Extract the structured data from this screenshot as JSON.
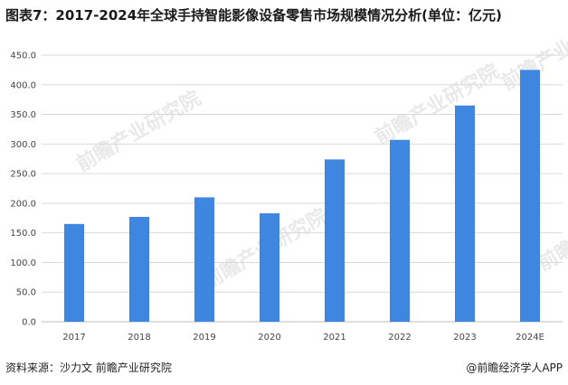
{
  "title": "图表7：2017-2024年全球手持智能影像设备零售市场规模情况分析(单位：亿元)",
  "source": "资料来源：沙力文 前瞻产业研究院",
  "credit": "@前瞻经济学人APP",
  "watermark": "前瞻产业研究院",
  "colors": {
    "bar": "#3f86e0",
    "grid": "#d9d9d9",
    "axis": "#bfbfbf"
  },
  "chart_data": {
    "type": "bar",
    "categories": [
      "2017",
      "2018",
      "2019",
      "2020",
      "2021",
      "2022",
      "2023",
      "2024E"
    ],
    "values": [
      165,
      177,
      210,
      183,
      274,
      307,
      365,
      425
    ],
    "ylim": [
      0,
      450
    ],
    "yticks": [
      "0.0",
      "50.0",
      "100.0",
      "150.0",
      "200.0",
      "250.0",
      "300.0",
      "350.0",
      "400.0",
      "450.0"
    ],
    "grid": true,
    "xlabel": "",
    "ylabel": ""
  }
}
